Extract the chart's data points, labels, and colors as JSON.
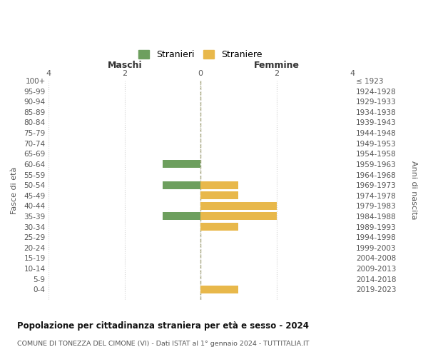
{
  "age_groups": [
    "100+",
    "95-99",
    "90-94",
    "85-89",
    "80-84",
    "75-79",
    "70-74",
    "65-69",
    "60-64",
    "55-59",
    "50-54",
    "45-49",
    "40-44",
    "35-39",
    "30-34",
    "25-29",
    "20-24",
    "15-19",
    "10-14",
    "5-9",
    "0-4"
  ],
  "birth_years": [
    "≤ 1923",
    "1924-1928",
    "1929-1933",
    "1934-1938",
    "1939-1943",
    "1944-1948",
    "1949-1953",
    "1954-1958",
    "1959-1963",
    "1964-1968",
    "1969-1973",
    "1974-1978",
    "1979-1983",
    "1984-1988",
    "1989-1993",
    "1994-1998",
    "1999-2003",
    "2004-2008",
    "2009-2013",
    "2014-2018",
    "2019-2023"
  ],
  "stranieri": [
    0,
    0,
    0,
    0,
    0,
    0,
    0,
    0,
    1,
    0,
    1,
    0,
    0,
    1,
    0,
    0,
    0,
    0,
    0,
    0,
    0
  ],
  "straniere": [
    0,
    0,
    0,
    0,
    0,
    0,
    0,
    0,
    0,
    0,
    1,
    1,
    2,
    2,
    1,
    0,
    0,
    0,
    0,
    0,
    1
  ],
  "color_stranieri": "#6d9f5e",
  "color_straniere": "#e8b84b",
  "xlim": 4,
  "title_maschi": "Maschi",
  "title_femmine": "Femmine",
  "ylabel_left": "Fasce di età",
  "ylabel_right": "Anni di nascita",
  "title": "Popolazione per cittadinanza straniera per età e sesso - 2024",
  "subtitle": "COMUNE DI TONEZZA DEL CIMONE (VI) - Dati ISTAT al 1° gennaio 2024 - TUTTITALIA.IT",
  "legend_stranieri": "Stranieri",
  "legend_straniere": "Straniere",
  "bg_color": "#ffffff",
  "grid_color": "#d0d0d0",
  "bar_height": 0.75
}
